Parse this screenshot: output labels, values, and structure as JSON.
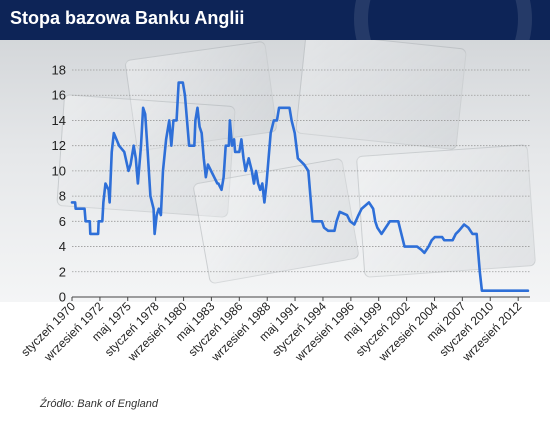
{
  "header": {
    "title": "Stopa bazowa Banku Anglii"
  },
  "source": "Źródło: Bank of England",
  "colors": {
    "header_bg": "#0d2457",
    "line": "#2e6fd8",
    "grid": "#9a9a9a"
  },
  "chart_data": {
    "type": "line",
    "title": "Stopa bazowa Banku Anglii",
    "xlabel": "",
    "ylabel": "",
    "ylim": [
      0,
      18
    ],
    "yticks": [
      0,
      2,
      4,
      6,
      8,
      10,
      12,
      14,
      16,
      18
    ],
    "xlim": [
      1970.0,
      2013.8
    ],
    "grid": "horizontal",
    "xtick_labels": [
      {
        "label": "styczeń 1970",
        "x": 1970.0
      },
      {
        "label": "wrzesień 1972",
        "x": 1972.67
      },
      {
        "label": "maj 1975",
        "x": 1975.33
      },
      {
        "label": "styczeń 1978",
        "x": 1978.0
      },
      {
        "label": "wrzesień 1980",
        "x": 1980.67
      },
      {
        "label": "maj 1983",
        "x": 1983.33
      },
      {
        "label": "styczeń 1986",
        "x": 1986.0
      },
      {
        "label": "wrzesień 1988",
        "x": 1988.67
      },
      {
        "label": "maj 1991",
        "x": 1991.33
      },
      {
        "label": "styczeń 1994",
        "x": 1994.0
      },
      {
        "label": "wrzesień 1996",
        "x": 1996.67
      },
      {
        "label": "maj 1999",
        "x": 1999.33
      },
      {
        "label": "styczeń 2002",
        "x": 2002.0
      },
      {
        "label": "wrzesień 2004",
        "x": 2004.67
      },
      {
        "label": "maj 2007",
        "x": 2007.33
      },
      {
        "label": "styczeń 2010",
        "x": 2010.0
      },
      {
        "label": "wrzesień 2012",
        "x": 2012.67
      }
    ],
    "series": [
      {
        "points": [
          [
            1970.0,
            7.5
          ],
          [
            1970.3,
            7.5
          ],
          [
            1970.35,
            7.0
          ],
          [
            1971.2,
            7.0
          ],
          [
            1971.3,
            6.0
          ],
          [
            1971.7,
            6.0
          ],
          [
            1971.75,
            5.0
          ],
          [
            1972.5,
            5.0
          ],
          [
            1972.55,
            6.0
          ],
          [
            1972.9,
            6.0
          ],
          [
            1973.0,
            7.5
          ],
          [
            1973.2,
            9.0
          ],
          [
            1973.5,
            8.5
          ],
          [
            1973.6,
            7.5
          ],
          [
            1973.8,
            11.5
          ],
          [
            1974.0,
            13.0
          ],
          [
            1974.5,
            12.0
          ],
          [
            1975.0,
            11.5
          ],
          [
            1975.4,
            10.0
          ],
          [
            1975.6,
            10.5
          ],
          [
            1975.9,
            12.0
          ],
          [
            1976.1,
            11.0
          ],
          [
            1976.3,
            9.0
          ],
          [
            1976.6,
            12.0
          ],
          [
            1976.8,
            15.0
          ],
          [
            1977.0,
            14.5
          ],
          [
            1977.2,
            12.0
          ],
          [
            1977.5,
            8.0
          ],
          [
            1977.8,
            7.0
          ],
          [
            1977.9,
            5.0
          ],
          [
            1978.1,
            6.5
          ],
          [
            1978.3,
            7.0
          ],
          [
            1978.5,
            6.5
          ],
          [
            1978.7,
            10.0
          ],
          [
            1979.0,
            12.5
          ],
          [
            1979.3,
            14.0
          ],
          [
            1979.5,
            12.0
          ],
          [
            1979.7,
            14.0
          ],
          [
            1980.0,
            14.0
          ],
          [
            1980.2,
            17.0
          ],
          [
            1980.6,
            17.0
          ],
          [
            1980.8,
            16.0
          ],
          [
            1981.0,
            14.0
          ],
          [
            1981.2,
            12.0
          ],
          [
            1981.7,
            12.0
          ],
          [
            1981.8,
            14.0
          ],
          [
            1982.0,
            15.0
          ],
          [
            1982.2,
            13.5
          ],
          [
            1982.4,
            13.0
          ],
          [
            1982.6,
            11.0
          ],
          [
            1982.8,
            9.5
          ],
          [
            1983.0,
            10.5
          ],
          [
            1983.3,
            10.0
          ],
          [
            1983.6,
            9.5
          ],
          [
            1983.9,
            9.0
          ],
          [
            1984.0,
            9.0
          ],
          [
            1984.3,
            8.5
          ],
          [
            1984.5,
            9.5
          ],
          [
            1984.7,
            12.0
          ],
          [
            1985.0,
            12.0
          ],
          [
            1985.1,
            14.0
          ],
          [
            1985.3,
            12.0
          ],
          [
            1985.5,
            12.5
          ],
          [
            1985.6,
            11.5
          ],
          [
            1986.0,
            11.5
          ],
          [
            1986.2,
            12.5
          ],
          [
            1986.4,
            11.0
          ],
          [
            1986.6,
            10.0
          ],
          [
            1986.9,
            11.0
          ],
          [
            1987.2,
            10.0
          ],
          [
            1987.4,
            9.0
          ],
          [
            1987.6,
            10.0
          ],
          [
            1987.8,
            9.0
          ],
          [
            1988.0,
            8.5
          ],
          [
            1988.2,
            9.0
          ],
          [
            1988.4,
            7.5
          ],
          [
            1988.6,
            9.0
          ],
          [
            1988.8,
            11.0
          ],
          [
            1989.0,
            13.0
          ],
          [
            1989.3,
            14.0
          ],
          [
            1989.6,
            14.0
          ],
          [
            1989.8,
            15.0
          ],
          [
            1990.8,
            15.0
          ],
          [
            1991.0,
            14.0
          ],
          [
            1991.3,
            13.0
          ],
          [
            1991.6,
            11.0
          ],
          [
            1992.2,
            10.5
          ],
          [
            1992.6,
            10.0
          ],
          [
            1992.8,
            8.0
          ],
          [
            1993.0,
            6.0
          ],
          [
            1993.9,
            6.0
          ],
          [
            1994.1,
            5.5
          ],
          [
            1994.5,
            5.25
          ],
          [
            1995.1,
            5.25
          ],
          [
            1995.3,
            6.0
          ],
          [
            1995.6,
            6.75
          ],
          [
            1996.3,
            6.5
          ],
          [
            1996.6,
            6.0
          ],
          [
            1997.0,
            5.75
          ],
          [
            1997.4,
            6.5
          ],
          [
            1997.7,
            7.0
          ],
          [
            1998.4,
            7.5
          ],
          [
            1998.8,
            7.0
          ],
          [
            1999.0,
            6.0
          ],
          [
            1999.2,
            5.5
          ],
          [
            1999.6,
            5.0
          ],
          [
            2000.0,
            5.5
          ],
          [
            2000.4,
            6.0
          ],
          [
            2001.2,
            6.0
          ],
          [
            2001.5,
            5.0
          ],
          [
            2001.8,
            4.0
          ],
          [
            2003.0,
            4.0
          ],
          [
            2003.4,
            3.75
          ],
          [
            2003.7,
            3.5
          ],
          [
            2004.1,
            4.0
          ],
          [
            2004.4,
            4.5
          ],
          [
            2004.7,
            4.75
          ],
          [
            2005.4,
            4.75
          ],
          [
            2005.6,
            4.5
          ],
          [
            2006.4,
            4.5
          ],
          [
            2006.7,
            5.0
          ],
          [
            2007.0,
            5.25
          ],
          [
            2007.5,
            5.75
          ],
          [
            2007.9,
            5.5
          ],
          [
            2008.3,
            5.0
          ],
          [
            2008.7,
            5.0
          ],
          [
            2008.9,
            3.0
          ],
          [
            2009.0,
            2.0
          ],
          [
            2009.2,
            0.5
          ],
          [
            2013.6,
            0.5
          ]
        ]
      }
    ]
  }
}
